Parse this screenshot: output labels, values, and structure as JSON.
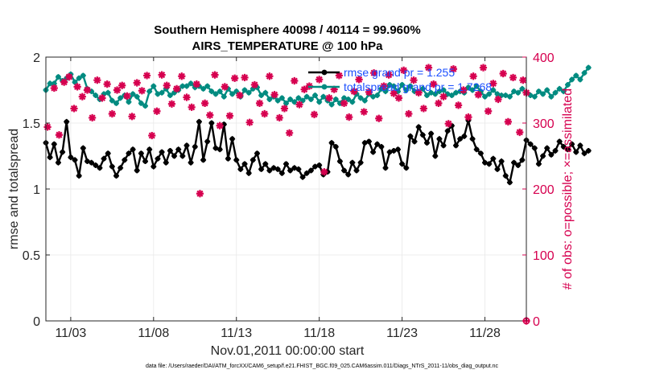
{
  "chart_data": {
    "type": "line",
    "title": "Southern Hemisphere 40098 / 40114 = 99.960%",
    "subtitle": "AIRS_TEMPERATURE @ 100 hPa",
    "xlabel": "Nov.01,2011 00:00:00 start",
    "ylabel_left": "rmse and totalspread",
    "ylabel_right": "# of obs: o=possible; ×=assimilated",
    "xlim": [
      1.5,
      30.5
    ],
    "ylim_left": [
      0,
      2
    ],
    "ylim_right": [
      0,
      400
    ],
    "x_ticks": [
      3,
      8,
      13,
      18,
      23,
      28
    ],
    "x_tick_labels": [
      "11/03",
      "11/08",
      "11/13",
      "11/18",
      "11/23",
      "11/28"
    ],
    "y_left_ticks": [
      "0",
      "0.5",
      "1",
      "1.5",
      "2"
    ],
    "y_right_ticks": [
      "0",
      "100",
      "200",
      "300",
      "400"
    ],
    "grid": true,
    "legend_position": "top-right",
    "footer": "data file: /Users/raeder/DAI/ATM_forcXX/CAM6_setup/f.e21.FHIST_BGC.f09_025.CAM6assim.011/Diags_NTrS_2011-11/obs_diag_output.nc",
    "series": [
      {
        "name": "rmse grand pr = 1.255",
        "axis": "left",
        "color": "#000000",
        "x_start": 1.5,
        "x_step": 0.25,
        "values": [
          1.35,
          1.24,
          1.34,
          1.2,
          1.28,
          1.51,
          1.24,
          1.22,
          1.1,
          1.31,
          1.21,
          1.2,
          1.18,
          1.16,
          1.23,
          1.27,
          1.17,
          1.1,
          1.16,
          1.22,
          1.27,
          1.3,
          1.14,
          1.27,
          1.21,
          1.3,
          1.17,
          1.23,
          1.28,
          1.2,
          1.29,
          1.25,
          1.3,
          1.25,
          1.33,
          1.2,
          1.32,
          1.51,
          1.22,
          1.36,
          1.5,
          1.31,
          1.3,
          1.49,
          1.23,
          1.38,
          1.22,
          1.15,
          1.19,
          1.12,
          1.22,
          1.27,
          1.15,
          1.19,
          1.14,
          1.16,
          1.15,
          1.12,
          1.19,
          1.14,
          1.16,
          1.15,
          1.09,
          1.12,
          1.14,
          1.17,
          1.18,
          1.11,
          1.13,
          1.35,
          1.32,
          1.21,
          1.14,
          1.11,
          1.2,
          1.14,
          1.2,
          1.35,
          1.36,
          1.28,
          1.34,
          1.32,
          1.16,
          1.28,
          1.29,
          1.3,
          1.19,
          1.16,
          1.4,
          1.36,
          1.47,
          1.41,
          1.35,
          1.42,
          1.25,
          1.38,
          1.33,
          1.44,
          1.48,
          1.33,
          1.38,
          1.4,
          1.52,
          1.38,
          1.3,
          1.27,
          1.2,
          1.19,
          1.23,
          1.15,
          1.21,
          1.1,
          1.05,
          1.2,
          1.18,
          1.22,
          1.37,
          1.34,
          1.31,
          1.19,
          1.25,
          1.31,
          1.26,
          1.29,
          1.36,
          1.32,
          1.3,
          1.34,
          1.28,
          1.33,
          1.27,
          1.29
        ]
      },
      {
        "name": "totalspread grand pr = 1.7268",
        "axis": "left",
        "color": "#008b80",
        "x_start": 1.5,
        "x_step": 0.25,
        "values": [
          1.75,
          1.8,
          1.8,
          1.85,
          1.82,
          1.84,
          1.87,
          1.81,
          1.84,
          1.86,
          1.76,
          1.74,
          1.71,
          1.68,
          1.72,
          1.73,
          1.67,
          1.65,
          1.69,
          1.71,
          1.66,
          1.72,
          1.7,
          1.65,
          1.63,
          1.74,
          1.78,
          1.72,
          1.73,
          1.76,
          1.71,
          1.73,
          1.75,
          1.78,
          1.78,
          1.8,
          1.77,
          1.78,
          1.76,
          1.78,
          1.74,
          1.72,
          1.74,
          1.7,
          1.76,
          1.72,
          1.74,
          1.7,
          1.75,
          1.73,
          1.76,
          1.77,
          1.71,
          1.73,
          1.68,
          1.7,
          1.67,
          1.69,
          1.65,
          1.68,
          1.66,
          1.69,
          1.67,
          1.7,
          1.68,
          1.71,
          1.66,
          1.7,
          1.67,
          1.64,
          1.68,
          1.65,
          1.69,
          1.68,
          1.66,
          1.72,
          1.69,
          1.67,
          1.72,
          1.7,
          1.71,
          1.76,
          1.74,
          1.79,
          1.78,
          1.74,
          1.79,
          1.75,
          1.78,
          1.74,
          1.73,
          1.76,
          1.71,
          1.73,
          1.72,
          1.74,
          1.75,
          1.72,
          1.71,
          1.73,
          1.74,
          1.73,
          1.77,
          1.75,
          1.78,
          1.74,
          1.7,
          1.72,
          1.75,
          1.72,
          1.71,
          1.71,
          1.7,
          1.74,
          1.73,
          1.76,
          1.73,
          1.71,
          1.7,
          1.74,
          1.72,
          1.75,
          1.7,
          1.73,
          1.76,
          1.74,
          1.79,
          1.83,
          1.86,
          1.83,
          1.88,
          1.92
        ]
      },
      {
        "name": "# obs assimilated",
        "axis": "right",
        "color": "#d6004f",
        "marker": "x",
        "points": [
          [
            1.6,
            294
          ],
          [
            2,
            353
          ],
          [
            2.3,
            282
          ],
          [
            2.6,
            362
          ],
          [
            2.9,
            370
          ],
          [
            3.2,
            322
          ],
          [
            3.4,
            355
          ],
          [
            3.7,
            340
          ],
          [
            4,
            350
          ],
          [
            4.3,
            308
          ],
          [
            4.6,
            365
          ],
          [
            4.9,
            338
          ],
          [
            5.2,
            359
          ],
          [
            5.5,
            314
          ],
          [
            5.8,
            350
          ],
          [
            6.1,
            357
          ],
          [
            6.4,
            341
          ],
          [
            6.7,
            310
          ],
          [
            7,
            361
          ],
          [
            7.3,
            349
          ],
          [
            7.6,
            372
          ],
          [
            7.9,
            281
          ],
          [
            8.2,
            318
          ],
          [
            8.5,
            373
          ],
          [
            8.8,
            357
          ],
          [
            9.1,
            329
          ],
          [
            9.4,
            352
          ],
          [
            9.7,
            371
          ],
          [
            10,
            339
          ],
          [
            10.3,
            324
          ],
          [
            10.6,
            359
          ],
          [
            10.8,
            193
          ],
          [
            11.1,
            330
          ],
          [
            11.4,
            312
          ],
          [
            11.7,
            373
          ],
          [
            12,
            296
          ],
          [
            12.3,
            355
          ],
          [
            12.6,
            311
          ],
          [
            12.9,
            368
          ],
          [
            13.2,
            342
          ],
          [
            13.5,
            369
          ],
          [
            13.8,
            301
          ],
          [
            14.1,
            358
          ],
          [
            14.4,
            330
          ],
          [
            14.7,
            314
          ],
          [
            15,
            371
          ],
          [
            15.3,
            343
          ],
          [
            15.6,
            308
          ],
          [
            15.9,
            322
          ],
          [
            16.2,
            285
          ],
          [
            16.5,
            364
          ],
          [
            16.8,
            328
          ],
          [
            17.1,
            351
          ],
          [
            17.4,
            356
          ],
          [
            17.7,
            313
          ],
          [
            18,
            366
          ],
          [
            18.3,
            226
          ],
          [
            18.6,
            338
          ],
          [
            18.9,
            351
          ],
          [
            19.2,
            372
          ],
          [
            19.5,
            330
          ],
          [
            19.8,
            309
          ],
          [
            20.1,
            348
          ],
          [
            20.4,
            366
          ],
          [
            20.7,
            317
          ],
          [
            21,
            347
          ],
          [
            21.3,
            376
          ],
          [
            21.6,
            307
          ],
          [
            21.9,
            356
          ],
          [
            22.2,
            373
          ],
          [
            22.5,
            345
          ],
          [
            22.8,
            338
          ],
          [
            23.1,
            380
          ],
          [
            23.4,
            314
          ],
          [
            23.7,
            365
          ],
          [
            24,
            346
          ],
          [
            24.3,
            322
          ],
          [
            24.6,
            384
          ],
          [
            24.9,
            359
          ],
          [
            25.2,
            330
          ],
          [
            25.5,
            340
          ],
          [
            25.8,
            299
          ],
          [
            26.1,
            382
          ],
          [
            26.4,
            327
          ],
          [
            26.7,
            350
          ],
          [
            27,
            309
          ],
          [
            27.3,
            371
          ],
          [
            27.6,
            343
          ],
          [
            27.9,
            384
          ],
          [
            28.2,
            318
          ],
          [
            28.5,
            360
          ],
          [
            28.8,
            336
          ],
          [
            29.1,
            375
          ],
          [
            29.4,
            302
          ],
          [
            29.7,
            369
          ],
          [
            30.1,
            286
          ],
          [
            30.3,
            365
          ],
          [
            30.5,
            346
          ]
        ]
      },
      {
        "name": "# obs possible",
        "axis": "right",
        "color": "#d6004f",
        "marker": "o",
        "points": [
          [
            30.5,
            0
          ]
        ]
      }
    ]
  }
}
